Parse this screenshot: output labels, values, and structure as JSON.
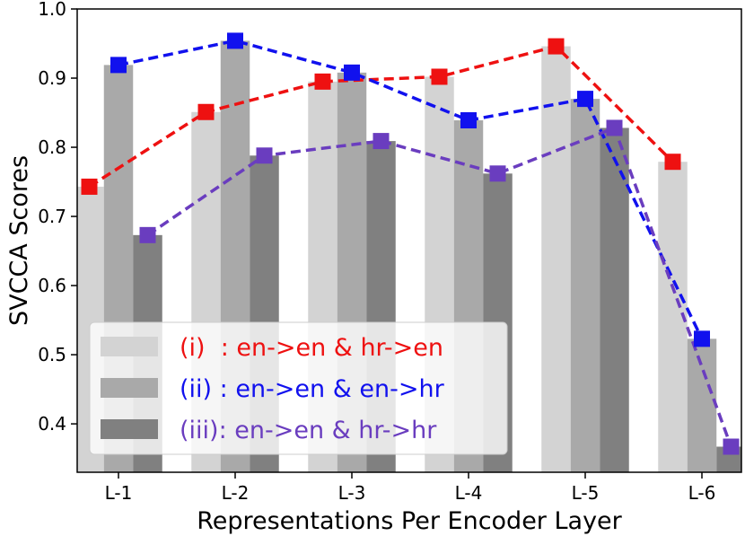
{
  "chart_data": {
    "type": "bar",
    "categories": [
      "L-1",
      "L-2",
      "L-3",
      "L-4",
      "L-5",
      "L-6"
    ],
    "xlabel": "Representations Per Encoder Layer",
    "ylabel": "SVCCA Scores",
    "ylim": [
      0.33,
      1.0
    ],
    "yticks": [
      "0.4",
      "0.5",
      "0.6",
      "0.7",
      "0.8",
      "0.9",
      "1.0"
    ],
    "grid": false,
    "legend_position": "bottom-left",
    "series": [
      {
        "name": "(i)  : en->en & hr->en",
        "bar_color": "#d3d3d3",
        "line_color": "#ee1111",
        "values": [
          0.743,
          0.851,
          0.895,
          0.902,
          0.946,
          0.779
        ]
      },
      {
        "name": "(ii) : en->en & en->hr",
        "bar_color": "#a9a9a9",
        "line_color": "#1111ee",
        "values": [
          0.919,
          0.954,
          0.908,
          0.839,
          0.87,
          0.523
        ]
      },
      {
        "name": "(iii): en->en & hr->hr",
        "bar_color": "#808080",
        "line_color": "#6a3dbf",
        "values": [
          0.673,
          0.788,
          0.809,
          0.762,
          0.828,
          0.367
        ]
      }
    ]
  }
}
